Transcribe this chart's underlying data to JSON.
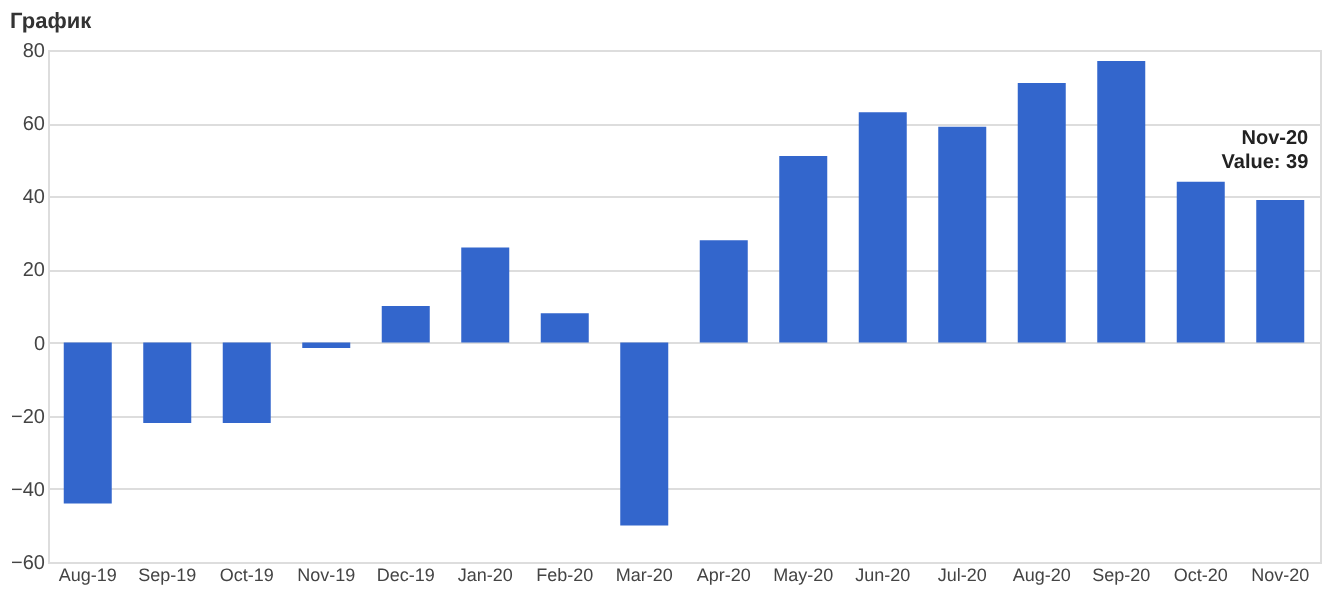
{
  "chart_data": {
    "type": "bar",
    "title": "График",
    "categories": [
      "Aug-19",
      "Sep-19",
      "Oct-19",
      "Nov-19",
      "Dec-19",
      "Jan-20",
      "Feb-20",
      "Mar-20",
      "Apr-20",
      "May-20",
      "Jun-20",
      "Jul-20",
      "Aug-20",
      "Sep-20",
      "Oct-20",
      "Nov-20"
    ],
    "values": [
      -44,
      -22,
      -22,
      -1.5,
      10,
      26,
      8,
      -50,
      28,
      51,
      63,
      59,
      71,
      77,
      44,
      39
    ],
    "color": "#3366cc",
    "ylim": [
      -60,
      80
    ],
    "yticks": [
      -60,
      -40,
      -20,
      0,
      20,
      40,
      60,
      80
    ],
    "grid": "y",
    "annotations": [
      {
        "text": "Nov-20\nValue: 39",
        "x": "Nov-20",
        "y": 39
      }
    ]
  }
}
